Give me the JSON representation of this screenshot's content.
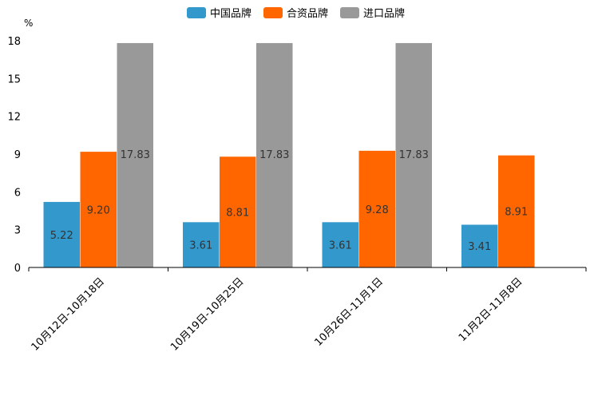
{
  "chart_data": {
    "type": "bar",
    "title": "",
    "xlabel": "",
    "ylabel": "%",
    "ylim": [
      0,
      18
    ],
    "yticks": [
      0,
      3,
      6,
      9,
      12,
      15,
      18
    ],
    "categories": [
      "10月12日-10月18日",
      "10月19日-10月25日",
      "10月26日-11月1日",
      "11月2日-11月8日"
    ],
    "series": [
      {
        "name": "中国品牌",
        "color": "#3399cc",
        "values": [
          5.22,
          3.61,
          3.61,
          3.41
        ],
        "labels": [
          "5.22",
          "3.61",
          "3.61",
          "3.41"
        ]
      },
      {
        "name": "合资品牌",
        "color": "#ff6600",
        "values": [
          9.2,
          8.81,
          9.28,
          8.91
        ],
        "labels": [
          "9.20",
          "8.81",
          "9.28",
          "8.91"
        ]
      },
      {
        "name": "进口品牌",
        "color": "#999999",
        "values": [
          17.83,
          17.83,
          17.83,
          null
        ],
        "labels": [
          "17.83",
          "17.83",
          "17.83",
          null
        ]
      }
    ],
    "legend_position": "top-center",
    "grid": false
  }
}
